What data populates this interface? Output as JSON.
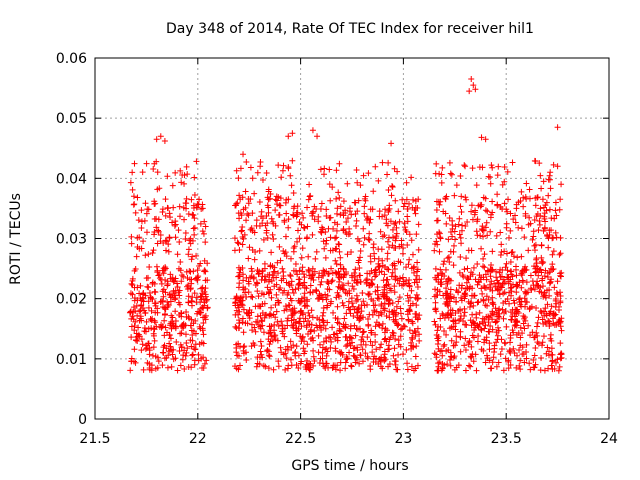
{
  "chart_data": {
    "type": "scatter",
    "title": "Day 348 of 2014, Rate Of TEC Index for receiver hil1",
    "xlabel": "GPS time / hours",
    "ylabel": "ROTI / TECUs",
    "xlim": [
      21.5,
      24
    ],
    "ylim": [
      0,
      0.06
    ],
    "xticks": [
      21.5,
      22,
      22.5,
      23,
      23.5,
      24
    ],
    "xtick_labels": [
      "21.5",
      "22",
      "22.5",
      "23",
      "23.5",
      "24"
    ],
    "yticks": [
      0,
      0.01,
      0.02,
      0.03,
      0.04,
      0.05,
      0.06
    ],
    "ytick_labels": [
      "0",
      "0.01",
      "0.02",
      "0.03",
      "0.04",
      "0.05",
      "0.06"
    ],
    "grid": true,
    "marker": "+",
    "color": "#ff0000",
    "series_description": "dense ROTI samples in three time windows",
    "clusters": [
      {
        "x_range": [
          21.67,
          22.05
        ],
        "y_range": [
          0.007,
          0.047
        ],
        "count": 520
      },
      {
        "x_range": [
          22.18,
          23.08
        ],
        "y_range": [
          0.006,
          0.048
        ],
        "count": 1300
      },
      {
        "x_range": [
          23.15,
          23.77
        ],
        "y_range": [
          0.007,
          0.056
        ],
        "count": 900
      }
    ],
    "highlights": [
      {
        "x": 21.8,
        "y": 0.0465
      },
      {
        "x": 21.82,
        "y": 0.047
      },
      {
        "x": 21.84,
        "y": 0.0462
      },
      {
        "x": 22.22,
        "y": 0.044
      },
      {
        "x": 22.44,
        "y": 0.047
      },
      {
        "x": 22.46,
        "y": 0.0475
      },
      {
        "x": 22.56,
        "y": 0.048
      },
      {
        "x": 22.58,
        "y": 0.047
      },
      {
        "x": 22.94,
        "y": 0.0458
      },
      {
        "x": 23.33,
        "y": 0.0565
      },
      {
        "x": 23.34,
        "y": 0.0555
      },
      {
        "x": 23.35,
        "y": 0.0548
      },
      {
        "x": 23.32,
        "y": 0.0545
      },
      {
        "x": 23.38,
        "y": 0.0468
      },
      {
        "x": 23.4,
        "y": 0.0465
      },
      {
        "x": 23.75,
        "y": 0.0485
      },
      {
        "x": 23.75,
        "y": 0.042
      },
      {
        "x": 23.3,
        "y": 0.042
      }
    ]
  }
}
